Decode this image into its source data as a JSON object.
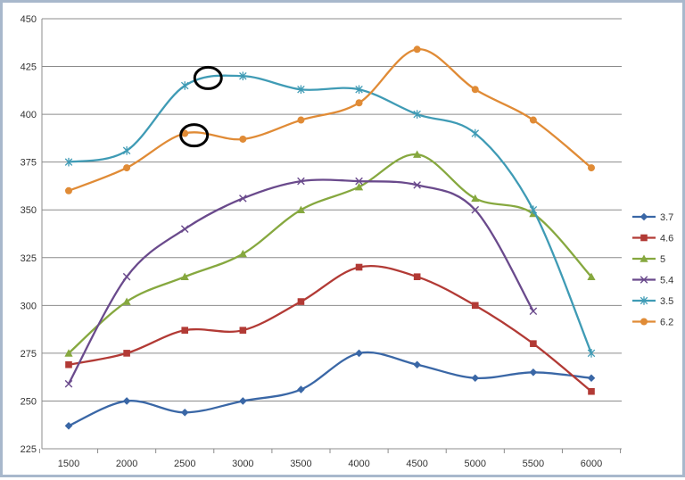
{
  "chart_data": {
    "type": "line",
    "title": "",
    "xlabel": "",
    "ylabel": "",
    "x": [
      1500,
      2000,
      2500,
      3000,
      3500,
      4000,
      4500,
      5000,
      5500,
      6000
    ],
    "x_tick_labels": [
      "1500",
      "2000",
      "2500",
      "3000",
      "3500",
      "4000",
      "4500",
      "5000",
      "5500",
      "6000"
    ],
    "ylim": [
      225,
      450
    ],
    "y_ticks": [
      225,
      250,
      275,
      300,
      325,
      350,
      375,
      400,
      425,
      450
    ],
    "grid": "horizontal",
    "legend_position": "right",
    "series": [
      {
        "name": "3.7",
        "color": "#3a67a6",
        "marker": "diamond",
        "values": [
          237,
          250,
          244,
          250,
          256,
          275,
          269,
          262,
          265,
          262
        ]
      },
      {
        "name": "4.6",
        "color": "#b23a35",
        "marker": "square",
        "values": [
          269,
          275,
          287,
          287,
          302,
          320,
          315,
          300,
          280,
          255
        ]
      },
      {
        "name": "5",
        "color": "#86a83f",
        "marker": "triangle",
        "values": [
          275,
          302,
          315,
          327,
          350,
          362,
          379,
          356,
          348,
          315
        ]
      },
      {
        "name": "5.4",
        "color": "#6a4a8c",
        "marker": "x",
        "values": [
          259,
          315,
          340,
          356,
          365,
          365,
          363,
          350,
          297,
          null
        ]
      },
      {
        "name": "3.5",
        "color": "#3f9bb5",
        "marker": "star",
        "values": [
          375,
          381,
          415,
          420,
          413,
          413,
          400,
          390,
          350,
          275
        ]
      },
      {
        "name": "6.2",
        "color": "#e08b36",
        "marker": "circle",
        "values": [
          360,
          372,
          390,
          387,
          397,
          406,
          434,
          413,
          397,
          372
        ]
      }
    ],
    "annotations": [
      {
        "shape": "ellipse",
        "color": "#000000",
        "x": 2700,
        "y": 419
      },
      {
        "shape": "ellipse",
        "color": "#000000",
        "x": 2580,
        "y": 389
      }
    ]
  }
}
